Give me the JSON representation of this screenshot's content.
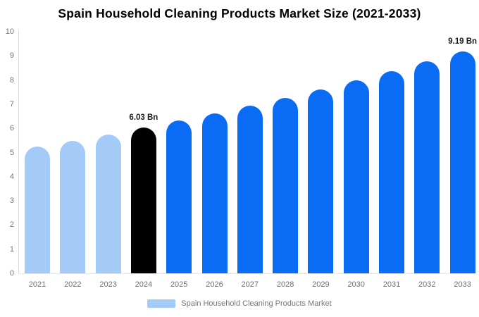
{
  "chart_data": {
    "type": "bar",
    "title": "Spain Household Cleaning Products Market Size (2021-2033)",
    "categories": [
      "2021",
      "2022",
      "2023",
      "2024",
      "2025",
      "2026",
      "2027",
      "2028",
      "2029",
      "2030",
      "2031",
      "2032",
      "2033"
    ],
    "values": [
      5.24,
      5.49,
      5.75,
      6.03,
      6.32,
      6.62,
      6.94,
      7.27,
      7.62,
      7.98,
      8.37,
      8.77,
      9.19
    ],
    "value_unit": "Bn",
    "xlabel": "",
    "ylabel": "",
    "ylim": [
      0,
      10
    ],
    "yticks": [
      0,
      1,
      2,
      3,
      4,
      5,
      6,
      7,
      8,
      9,
      10
    ],
    "grid": false,
    "bar_colors": [
      "#A4CBF8",
      "#A4CBF8",
      "#A4CBF8",
      "#000000",
      "#0A6CF5",
      "#0A6CF5",
      "#0A6CF5",
      "#0A6CF5",
      "#0A6CF5",
      "#0A6CF5",
      "#0A6CF5",
      "#0A6CF5",
      "#0A6CF5"
    ],
    "annotations": [
      {
        "category": "2024",
        "text": "6.03 Bn"
      },
      {
        "category": "2033",
        "text": "9.19 Bn"
      }
    ],
    "legend": {
      "position": "bottom",
      "label": "Spain Household Cleaning Products Market",
      "swatch_color": "#A4CBF8"
    }
  },
  "colors": {
    "background": "#ffffff",
    "light_blue": "#A4CBF8",
    "blue": "#0A6CF5",
    "highlight_black": "#000000",
    "axis_line": "#d9d9d9",
    "tick_text": "#757575",
    "annotation_text": "#1a1a1a"
  }
}
